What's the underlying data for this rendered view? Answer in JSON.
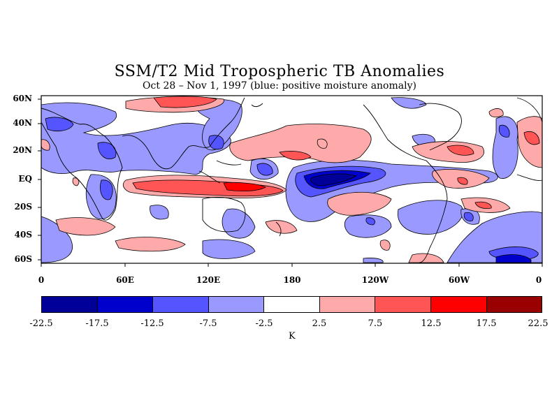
{
  "title": "SSM/T2 Mid Tropospheric TB Anomalies",
  "subtitle": "Oct 28 – Nov 1, 1997 (blue: positive moisture anomaly)",
  "lat_labels": [
    "60N",
    "40N",
    "20N",
    "EQ",
    "20S",
    "40S",
    "60S"
  ],
  "lon_labels": [
    "0",
    "60E",
    "120E",
    "180",
    "120W",
    "60W",
    "0"
  ],
  "colorbar": {
    "colors": [
      "#000099",
      "#0000cc",
      "#5555ff",
      "#9999ff",
      "#ffffff",
      "#ffaaaa",
      "#ff5555",
      "#ff0000",
      "#990000"
    ],
    "ticks": [
      "-22.5",
      "-17.5",
      "-12.5",
      "-7.5",
      "-2.5",
      "2.5",
      "7.5",
      "12.5",
      "17.5",
      "22.5"
    ],
    "units": "K"
  },
  "colors": {
    "strong_neg": "#000099",
    "neg2": "#0000cc",
    "neg3": "#5555ff",
    "neg4": "#9999ff",
    "pos1": "#ffaaaa",
    "pos2": "#ff5555",
    "pos3": "#ff0000"
  }
}
